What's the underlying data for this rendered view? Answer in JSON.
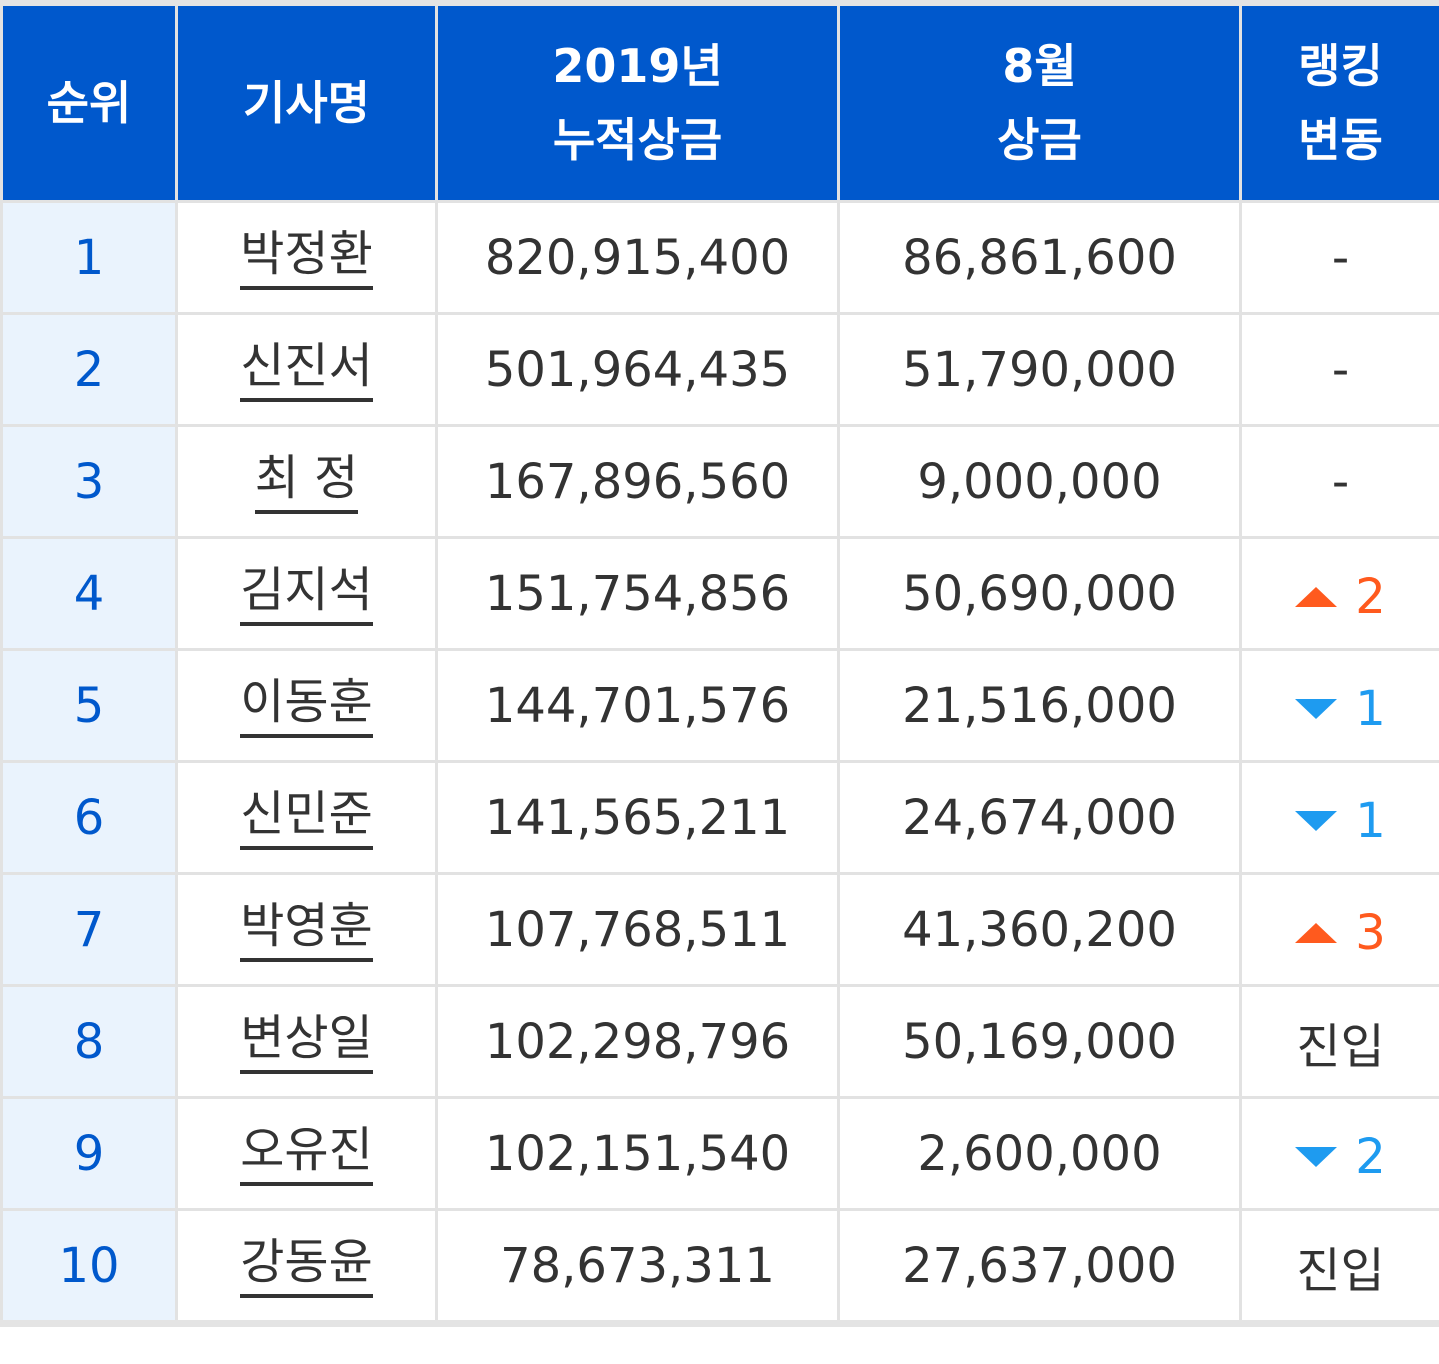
{
  "header": {
    "rank": "순위",
    "name": "기사명",
    "total_line1": "2019년",
    "total_line2": "누적상금",
    "month_line1": "8월",
    "month_line2": "상금",
    "change_line1": "랭킹",
    "change_line2": "변동"
  },
  "rows": [
    {
      "rank": "1",
      "name": "박정환",
      "total": "820,915,400",
      "month": "86,861,600",
      "change_type": "flat",
      "change_text": "-"
    },
    {
      "rank": "2",
      "name": "신진서",
      "total": "501,964,435",
      "month": "51,790,000",
      "change_type": "flat",
      "change_text": "-"
    },
    {
      "rank": "3",
      "name": "최 정",
      "total": "167,896,560",
      "month": "9,000,000",
      "change_type": "flat",
      "change_text": "-"
    },
    {
      "rank": "4",
      "name": "김지석",
      "total": "151,754,856",
      "month": "50,690,000",
      "change_type": "up",
      "change_text": "2"
    },
    {
      "rank": "5",
      "name": "이동훈",
      "total": "144,701,576",
      "month": "21,516,000",
      "change_type": "down",
      "change_text": "1"
    },
    {
      "rank": "6",
      "name": "신민준",
      "total": "141,565,211",
      "month": "24,674,000",
      "change_type": "down",
      "change_text": "1"
    },
    {
      "rank": "7",
      "name": "박영훈",
      "total": "107,768,511",
      "month": "41,360,200",
      "change_type": "up",
      "change_text": "3"
    },
    {
      "rank": "8",
      "name": "변상일",
      "total": "102,298,796",
      "month": "50,169,000",
      "change_type": "new",
      "change_text": "진입"
    },
    {
      "rank": "9",
      "name": "오유진",
      "total": "102,151,540",
      "month": "2,600,000",
      "change_type": "down",
      "change_text": "2"
    },
    {
      "rank": "10",
      "name": "강동윤",
      "total": "78,673,311",
      "month": "27,637,000",
      "change_type": "new",
      "change_text": "진입"
    }
  ],
  "colors": {
    "header_bg": "#0058cc",
    "rank_col_bg": "#eaf3fd",
    "rank_text": "#0058cc",
    "up": "#ff5a1e",
    "down": "#1e9bf0"
  },
  "icons": {
    "up": "triangle-up-icon",
    "down": "triangle-down-icon"
  }
}
